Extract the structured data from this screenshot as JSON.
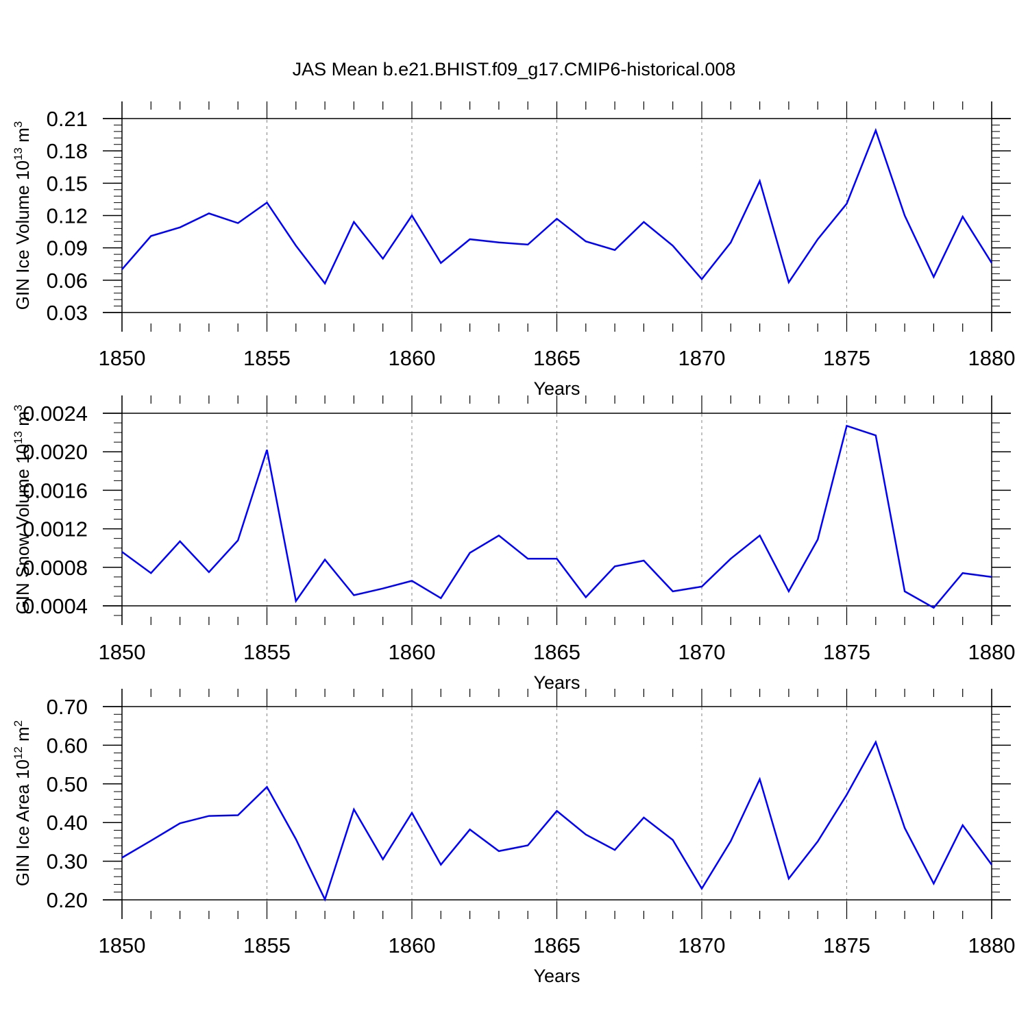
{
  "title": "JAS Mean b.e21.BHIST.f09_g17.CMIP6-historical.008",
  "colors": {
    "line": "#0000ff",
    "axis": "#000000",
    "grid": "#808080"
  },
  "chart_data": [
    {
      "type": "line",
      "title": "JAS Mean b.e21.BHIST.f09_g17.CMIP6-historical.008",
      "xlabel": "Years",
      "ylabel_main": "GIN Ice Volume 10",
      "ylabel_exp": "13",
      "ylabel_unit": " m",
      "ylabel_unit_exp": "3",
      "xlim": [
        1850,
        1880
      ],
      "ylim": [
        0.03,
        0.21
      ],
      "xticks": [
        1850,
        1855,
        1860,
        1865,
        1870,
        1875,
        1880
      ],
      "xtick_labels": [
        "1850",
        "1855",
        "1860",
        "1865",
        "1870",
        "1875",
        "1880"
      ],
      "yticks": [
        0.03,
        0.06,
        0.09,
        0.12,
        0.15,
        0.18,
        0.21
      ],
      "ytick_labels": [
        "0.03",
        "0.06",
        "0.09",
        "0.12",
        "0.15",
        "0.18",
        "0.21"
      ],
      "ymin_tick_step": 0.006,
      "grid": "vertical dashed at 1855, 1860, 1865, 1870, 1875",
      "x": [
        1850,
        1851,
        1852,
        1853,
        1854,
        1855,
        1856,
        1857,
        1858,
        1859,
        1860,
        1861,
        1862,
        1863,
        1864,
        1865,
        1866,
        1867,
        1868,
        1869,
        1870,
        1871,
        1872,
        1873,
        1874,
        1875,
        1876,
        1877,
        1878,
        1879,
        1880
      ],
      "values": [
        0.07,
        0.101,
        0.109,
        0.122,
        0.113,
        0.132,
        0.092,
        0.057,
        0.114,
        0.08,
        0.12,
        0.076,
        0.098,
        0.095,
        0.093,
        0.117,
        0.096,
        0.088,
        0.114,
        0.092,
        0.061,
        0.095,
        0.152,
        0.058,
        0.098,
        0.131,
        0.199,
        0.12,
        0.063,
        0.119,
        0.076
      ]
    },
    {
      "type": "line",
      "xlabel": "Years",
      "ylabel_main": "GIN Snow Volume 10",
      "ylabel_exp": "13",
      "ylabel_unit": " m",
      "ylabel_unit_exp": "3",
      "xlim": [
        1850,
        1880
      ],
      "ylim": [
        0.0003,
        0.0024
      ],
      "xticks": [
        1850,
        1855,
        1860,
        1865,
        1870,
        1875,
        1880
      ],
      "xtick_labels": [
        "1850",
        "1855",
        "1860",
        "1865",
        "1870",
        "1875",
        "1880"
      ],
      "yticks": [
        0.0004,
        0.0008,
        0.0012,
        0.0016,
        0.002,
        0.0024
      ],
      "ytick_labels": [
        "0.0004",
        "0.0008",
        "0.0012",
        "0.0016",
        "0.0020",
        "0.0024"
      ],
      "ymin_tick_step": 0.0001,
      "grid": "vertical dashed at 1855, 1860, 1865, 1870, 1875",
      "x": [
        1850,
        1851,
        1852,
        1853,
        1854,
        1855,
        1856,
        1857,
        1858,
        1859,
        1860,
        1861,
        1862,
        1863,
        1864,
        1865,
        1866,
        1867,
        1868,
        1869,
        1870,
        1871,
        1872,
        1873,
        1874,
        1875,
        1876,
        1877,
        1878,
        1879,
        1880
      ],
      "values": [
        0.00096,
        0.00074,
        0.00107,
        0.00075,
        0.00108,
        0.00202,
        0.00045,
        0.00088,
        0.00051,
        0.00058,
        0.00066,
        0.00048,
        0.00095,
        0.00113,
        0.00089,
        0.00089,
        0.00049,
        0.00081,
        0.00087,
        0.00055,
        0.0006,
        0.00089,
        0.00113,
        0.00055,
        0.00109,
        0.00227,
        0.00217,
        0.00055,
        0.00038,
        0.00074,
        0.0007
      ]
    },
    {
      "type": "line",
      "xlabel": "Years",
      "ylabel_main": "GIN Ice Area 10",
      "ylabel_exp": "12",
      "ylabel_unit": " m",
      "ylabel_unit_exp": "2",
      "xlim": [
        1850,
        1880
      ],
      "ylim": [
        0.2,
        0.7
      ],
      "xticks": [
        1850,
        1855,
        1860,
        1865,
        1870,
        1875,
        1880
      ],
      "xtick_labels": [
        "1850",
        "1855",
        "1860",
        "1865",
        "1870",
        "1875",
        "1880"
      ],
      "yticks": [
        0.2,
        0.3,
        0.4,
        0.5,
        0.6,
        0.7
      ],
      "ytick_labels": [
        "0.20",
        "0.30",
        "0.40",
        "0.50",
        "0.60",
        "0.70"
      ],
      "ymin_tick_step": 0.02,
      "grid": "vertical dashed at 1855, 1860, 1865, 1870, 1875",
      "x": [
        1850,
        1851,
        1852,
        1853,
        1854,
        1855,
        1856,
        1857,
        1858,
        1859,
        1860,
        1861,
        1862,
        1863,
        1864,
        1865,
        1866,
        1867,
        1868,
        1869,
        1870,
        1871,
        1872,
        1873,
        1874,
        1875,
        1876,
        1877,
        1878,
        1879,
        1880
      ],
      "values": [
        0.309,
        0.353,
        0.398,
        0.417,
        0.419,
        0.492,
        0.357,
        0.201,
        0.434,
        0.305,
        0.425,
        0.291,
        0.382,
        0.326,
        0.341,
        0.43,
        0.369,
        0.329,
        0.413,
        0.355,
        0.229,
        0.352,
        0.512,
        0.255,
        0.351,
        0.472,
        0.608,
        0.386,
        0.242,
        0.393,
        0.291
      ]
    }
  ]
}
